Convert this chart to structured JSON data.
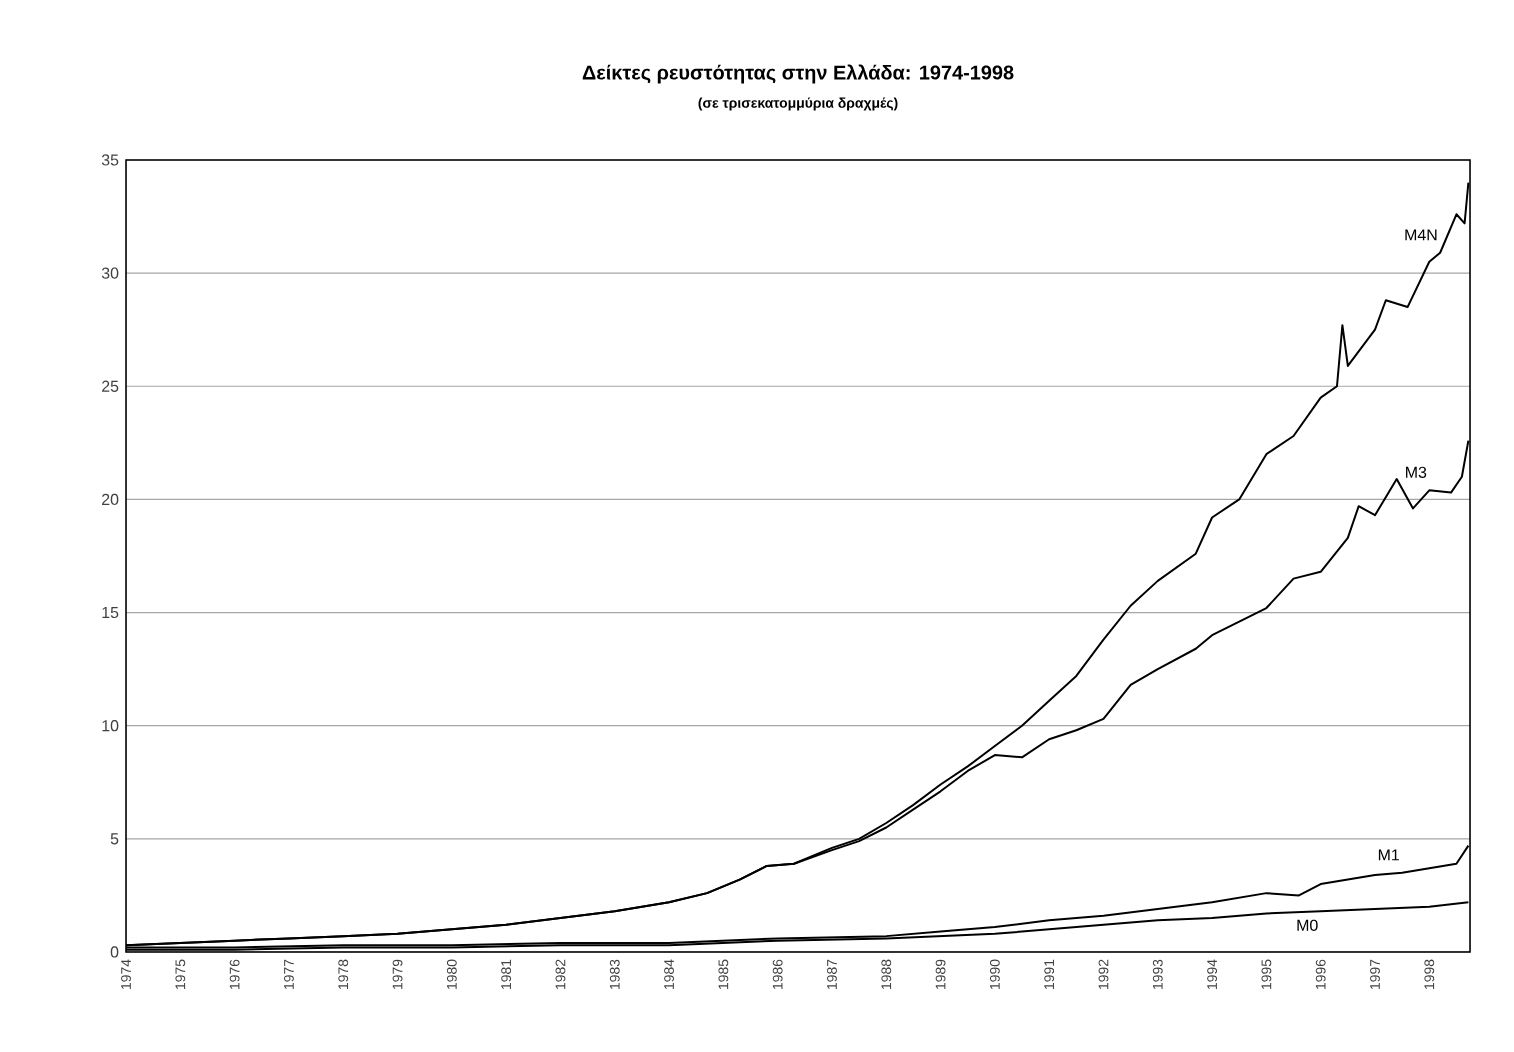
{
  "chart_data": {
    "type": "line",
    "title": "Δείκτες ρευστότητας στην Ελλάδα: 1974-1998",
    "subtitle": "(σε τρισεκατομμύρια δραχμές)",
    "xlim": [
      1974,
      1998.75
    ],
    "xticks": [
      1974,
      1975,
      1976,
      1977,
      1978,
      1979,
      1980,
      1981,
      1982,
      1983,
      1984,
      1985,
      1986,
      1987,
      1988,
      1989,
      1990,
      1991,
      1992,
      1993,
      1994,
      1995,
      1996,
      1997,
      1998
    ],
    "ylim": [
      0,
      35
    ],
    "yticks": [
      0,
      5,
      10,
      15,
      20,
      25,
      30,
      35
    ],
    "grid": "y",
    "marker": "none",
    "line_style": "solid",
    "series": [
      {
        "name": "M4N",
        "color": "#000000",
        "x": [
          1974,
          1975,
          1976,
          1977,
          1978,
          1979,
          1980,
          1981,
          1982,
          1983,
          1984,
          1984.7,
          1985.3,
          1985.8,
          1986.3,
          1987,
          1987.5,
          1988,
          1988.5,
          1989,
          1989.5,
          1990,
          1990.5,
          1991,
          1991.5,
          1992,
          1992.5,
          1993,
          1993.7,
          1994,
          1994.5,
          1995,
          1995.5,
          1996,
          1996.3,
          1996.4,
          1996.5,
          1997,
          1997.2,
          1997.6,
          1998,
          1998.2,
          1998.5,
          1998.65,
          1998.72
        ],
        "values": [
          0.3,
          0.4,
          0.5,
          0.6,
          0.7,
          0.8,
          1.0,
          1.2,
          1.5,
          1.8,
          2.2,
          2.6,
          3.2,
          3.8,
          3.9,
          4.6,
          5.0,
          5.7,
          6.5,
          7.4,
          8.2,
          9.1,
          10.0,
          11.1,
          12.2,
          13.8,
          15.3,
          16.4,
          17.6,
          19.2,
          20.0,
          22.0,
          22.8,
          24.5,
          25.0,
          27.7,
          25.9,
          27.5,
          28.8,
          28.5,
          30.5,
          30.9,
          32.6,
          32.2,
          34.0
        ]
      },
      {
        "name": "M3",
        "color": "#000000",
        "x": [
          1974,
          1975,
          1976,
          1977,
          1978,
          1979,
          1980,
          1981,
          1982,
          1983,
          1984,
          1984.7,
          1985.3,
          1985.8,
          1986.3,
          1987,
          1987.5,
          1988,
          1988.5,
          1989,
          1989.5,
          1990,
          1990.5,
          1991,
          1991.5,
          1992,
          1992.5,
          1993,
          1993.7,
          1994,
          1994.5,
          1995,
          1995.5,
          1996,
          1996.5,
          1996.7,
          1997,
          1997.4,
          1997.7,
          1998,
          1998.4,
          1998.6,
          1998.72
        ],
        "values": [
          0.3,
          0.4,
          0.5,
          0.6,
          0.7,
          0.8,
          1.0,
          1.2,
          1.5,
          1.8,
          2.2,
          2.6,
          3.2,
          3.8,
          3.9,
          4.5,
          4.9,
          5.5,
          6.3,
          7.1,
          8.0,
          8.7,
          8.6,
          9.4,
          9.8,
          10.3,
          11.8,
          12.5,
          13.4,
          14.0,
          14.6,
          15.2,
          16.5,
          16.8,
          18.3,
          19.7,
          19.3,
          20.9,
          19.6,
          20.4,
          20.3,
          21.0,
          22.6
        ]
      },
      {
        "name": "M1",
        "color": "#000000",
        "x": [
          1974,
          1976,
          1978,
          1980,
          1982,
          1984,
          1986,
          1988,
          1989,
          1990,
          1991,
          1992,
          1993,
          1994,
          1995,
          1995.6,
          1996,
          1997,
          1997.5,
          1998,
          1998.5,
          1998.72
        ],
        "values": [
          0.2,
          0.2,
          0.3,
          0.3,
          0.4,
          0.4,
          0.6,
          0.7,
          0.9,
          1.1,
          1.4,
          1.6,
          1.9,
          2.2,
          2.6,
          2.5,
          3.0,
          3.4,
          3.5,
          3.7,
          3.9,
          4.7
        ]
      },
      {
        "name": "M0",
        "color": "#000000",
        "x": [
          1974,
          1976,
          1978,
          1980,
          1982,
          1984,
          1986,
          1988,
          1990,
          1991,
          1992,
          1993,
          1994,
          1995,
          1996,
          1997,
          1998,
          1998.72
        ],
        "values": [
          0.1,
          0.1,
          0.2,
          0.2,
          0.3,
          0.3,
          0.5,
          0.6,
          0.8,
          1.0,
          1.2,
          1.4,
          1.5,
          1.7,
          1.8,
          1.9,
          2.0,
          2.2
        ]
      }
    ]
  }
}
